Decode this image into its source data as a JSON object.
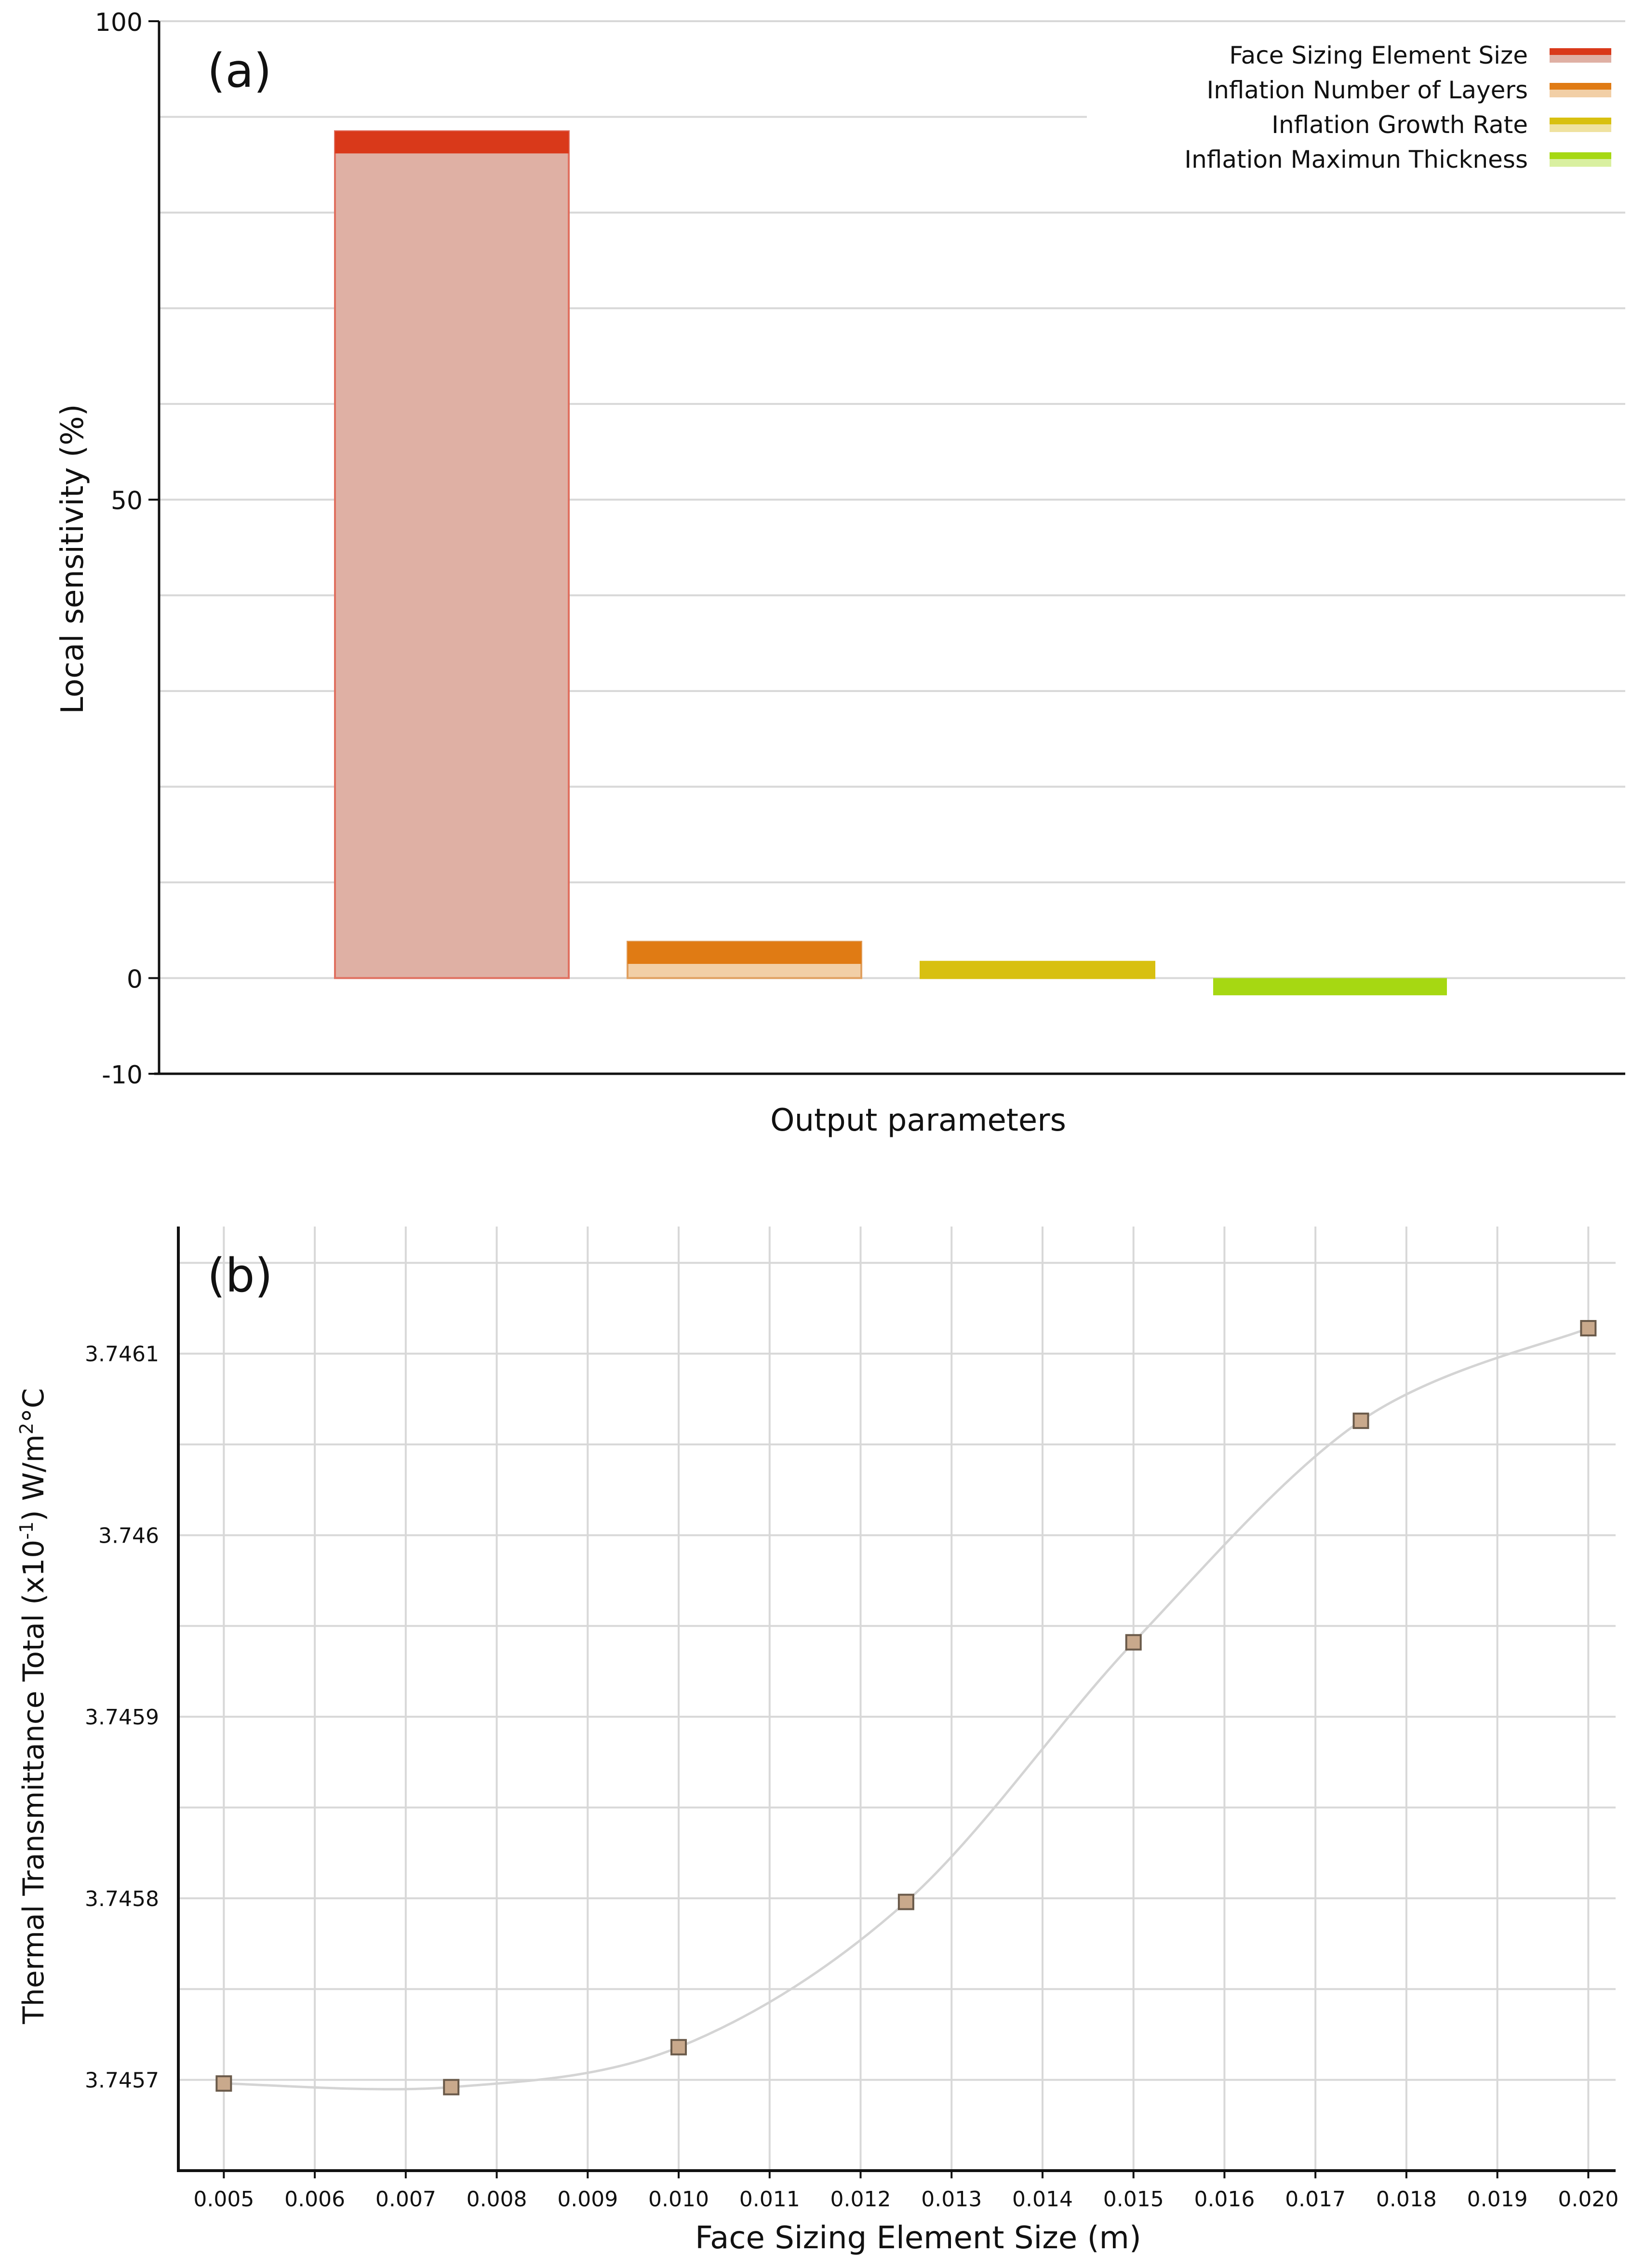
{
  "chart_data": [
    {
      "panel_label": "(a)",
      "type": "bar",
      "xlabel": "Output parameters",
      "ylabel": "Local sensitivity (%)",
      "ylim": [
        -10,
        100
      ],
      "yticks": [
        100,
        50,
        0,
        -10
      ],
      "grid": true,
      "legend_position": "top-right",
      "series": [
        {
          "name": "Face Sizing Element Size",
          "value": 88.5,
          "color": "#d9391a",
          "fill": "#dfb0a4",
          "edge": "#e07060"
        },
        {
          "name": "Inflation Number of Layers",
          "value": 3.8,
          "color": "#e07b14",
          "fill": "#f2cfa6",
          "edge": "#e0a060"
        },
        {
          "name": "Inflation Growth Rate",
          "value": 1.7,
          "color": "#d8c010",
          "fill": "#efe2a0",
          "edge": "#d8c010"
        },
        {
          "name": "Inflation Maximun Thickness",
          "value": -1.8,
          "color": "#a6d812",
          "fill": "#d9f0a0",
          "edge": "#a6d812"
        }
      ]
    },
    {
      "panel_label": "(b)",
      "type": "line",
      "xlabel": "Face Sizing Element Size (m)",
      "ylabel_pre": "Thermal Transmittance Total (x10",
      "ylabel_exp1": "-1",
      "ylabel_mid": ") W/m",
      "ylabel_exp2": "2",
      "ylabel_post": "°C",
      "xlim": [
        0.0045,
        0.0203
      ],
      "ylim": [
        3.74565,
        3.74617
      ],
      "xticks": [
        "0.005",
        "0.006",
        "0.007",
        "0.008",
        "0.009",
        "0.010",
        "0.011",
        "0.012",
        "0.013",
        "0.014",
        "0.015",
        "0.016",
        "0.017",
        "0.018",
        "0.019",
        "0.020"
      ],
      "yticks": [
        "3.7457",
        "3.7458",
        "3.7459",
        "3.746",
        "3.7461"
      ],
      "grid": true,
      "marker_color": "#c9a98c",
      "x": [
        0.005,
        0.0075,
        0.01,
        0.0125,
        0.015,
        0.0175,
        0.02
      ],
      "y": [
        3.745698,
        3.745696,
        3.745718,
        3.745798,
        3.745941,
        3.746063,
        3.746114
      ]
    }
  ]
}
